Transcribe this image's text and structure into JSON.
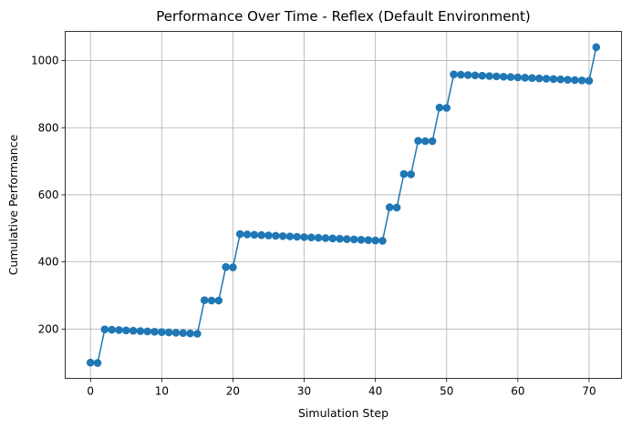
{
  "chart_data": {
    "type": "line",
    "title": "Performance Over Time - Reflex (Default Environment)",
    "xlabel": "Simulation Step",
    "ylabel": "Cumulative Performance",
    "xlim": [
      -3.55,
      74.55
    ],
    "ylim": [
      53,
      1087
    ],
    "xticks": [
      0,
      10,
      20,
      30,
      40,
      50,
      60,
      70
    ],
    "yticks": [
      200,
      400,
      600,
      800,
      1000
    ],
    "grid": true,
    "marker": "circle",
    "color": "#1f77b4",
    "x": [
      0,
      1,
      2,
      3,
      4,
      5,
      6,
      7,
      8,
      9,
      10,
      11,
      12,
      13,
      14,
      15,
      16,
      17,
      18,
      19,
      20,
      21,
      22,
      23,
      24,
      25,
      26,
      27,
      28,
      29,
      30,
      31,
      32,
      33,
      34,
      35,
      36,
      37,
      38,
      39,
      40,
      41,
      42,
      43,
      44,
      45,
      46,
      47,
      48,
      49,
      50,
      51,
      52,
      53,
      54,
      55,
      56,
      57,
      58,
      59,
      60,
      61,
      62,
      63,
      64,
      65,
      66,
      67,
      68,
      69,
      70,
      71
    ],
    "y": [
      100,
      99,
      199,
      198,
      197,
      196,
      195,
      194,
      193,
      192,
      191,
      190,
      189,
      188,
      187,
      186,
      286,
      285,
      285,
      385,
      384,
      483,
      482,
      481,
      480,
      479,
      478,
      477,
      476,
      475,
      474,
      473,
      472,
      471,
      470,
      469,
      468,
      467,
      466,
      465,
      464,
      463,
      563,
      562,
      662,
      661,
      761,
      760,
      760,
      860,
      859,
      959,
      958,
      957,
      956,
      955,
      954,
      953,
      952,
      951,
      950,
      949,
      948,
      947,
      946,
      945,
      944,
      943,
      942,
      941,
      940,
      1040
    ]
  }
}
